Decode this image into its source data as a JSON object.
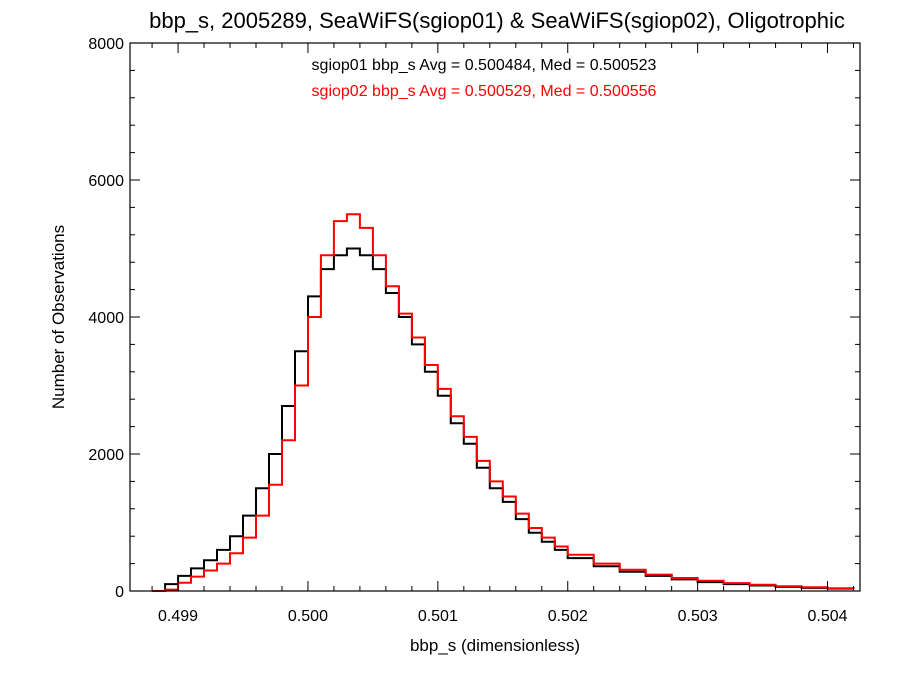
{
  "chart_data": {
    "type": "line",
    "title": "bbp_s, 2005289, SeaWiFS(sgiop01) & SeaWiFS(sgiop02), Oligotrophic",
    "xlabel": "bbp_s (dimensionless)",
    "ylabel": "Number of Observations",
    "xlim": [
      0.49863,
      0.50425
    ],
    "ylim": [
      0,
      8000
    ],
    "x_ticks": [
      0.499,
      0.5,
      0.501,
      0.502,
      0.503,
      0.504
    ],
    "x_tick_labels": [
      "0.499",
      "0.500",
      "0.501",
      "0.502",
      "0.503",
      "0.504"
    ],
    "y_ticks": [
      0,
      2000,
      4000,
      6000,
      8000
    ],
    "y_tick_labels": [
      "0",
      "2000",
      "4000",
      "6000",
      "8000"
    ],
    "grid": false,
    "annotations": [
      {
        "text": "sgiop01 bbp_s Avg = 0.500484, Med = 0.500523",
        "color": "#000000"
      },
      {
        "text": "sgiop02 bbp_s Avg = 0.500529, Med = 0.500556",
        "color": "#ff0000"
      }
    ],
    "series": [
      {
        "name": "sgiop01",
        "color": "#000000",
        "x": [
          0.4988,
          0.4989,
          0.499,
          0.4991,
          0.4992,
          0.4993,
          0.4994,
          0.4995,
          0.4996,
          0.4997,
          0.4998,
          0.4999,
          0.5,
          0.5001,
          0.5002,
          0.5003,
          0.5004,
          0.5005,
          0.5006,
          0.5007,
          0.5008,
          0.5009,
          0.501,
          0.5011,
          0.5012,
          0.5013,
          0.5014,
          0.5015,
          0.5016,
          0.5017,
          0.5018,
          0.5019,
          0.502,
          0.5022,
          0.5024,
          0.5026,
          0.5028,
          0.503,
          0.5032,
          0.5034,
          0.5036,
          0.5038,
          0.504,
          0.5042
        ],
        "y": [
          0,
          100,
          220,
          330,
          450,
          600,
          800,
          1100,
          1500,
          2000,
          2700,
          3500,
          4300,
          4700,
          4900,
          5000,
          4900,
          4700,
          4350,
          4000,
          3600,
          3200,
          2850,
          2450,
          2150,
          1800,
          1500,
          1300,
          1050,
          850,
          720,
          600,
          480,
          360,
          280,
          220,
          170,
          130,
          100,
          80,
          60,
          45,
          35,
          25
        ]
      },
      {
        "name": "sgiop02",
        "color": "#ff0000",
        "x": [
          0.4988,
          0.4989,
          0.499,
          0.4991,
          0.4992,
          0.4993,
          0.4994,
          0.4995,
          0.4996,
          0.4997,
          0.4998,
          0.4999,
          0.5,
          0.5001,
          0.5002,
          0.5003,
          0.5004,
          0.5005,
          0.5006,
          0.5007,
          0.5008,
          0.5009,
          0.501,
          0.5011,
          0.5012,
          0.5013,
          0.5014,
          0.5015,
          0.5016,
          0.5017,
          0.5018,
          0.5019,
          0.502,
          0.5022,
          0.5024,
          0.5026,
          0.5028,
          0.503,
          0.5032,
          0.5034,
          0.5036,
          0.5038,
          0.504,
          0.5042
        ],
        "y": [
          0,
          20,
          120,
          210,
          300,
          400,
          550,
          780,
          1100,
          1550,
          2200,
          3000,
          4000,
          4900,
          5400,
          5500,
          5300,
          4900,
          4450,
          4050,
          3700,
          3300,
          2950,
          2550,
          2250,
          1900,
          1600,
          1380,
          1130,
          920,
          780,
          650,
          530,
          400,
          310,
          240,
          190,
          150,
          115,
          90,
          70,
          55,
          40,
          30
        ]
      }
    ]
  }
}
